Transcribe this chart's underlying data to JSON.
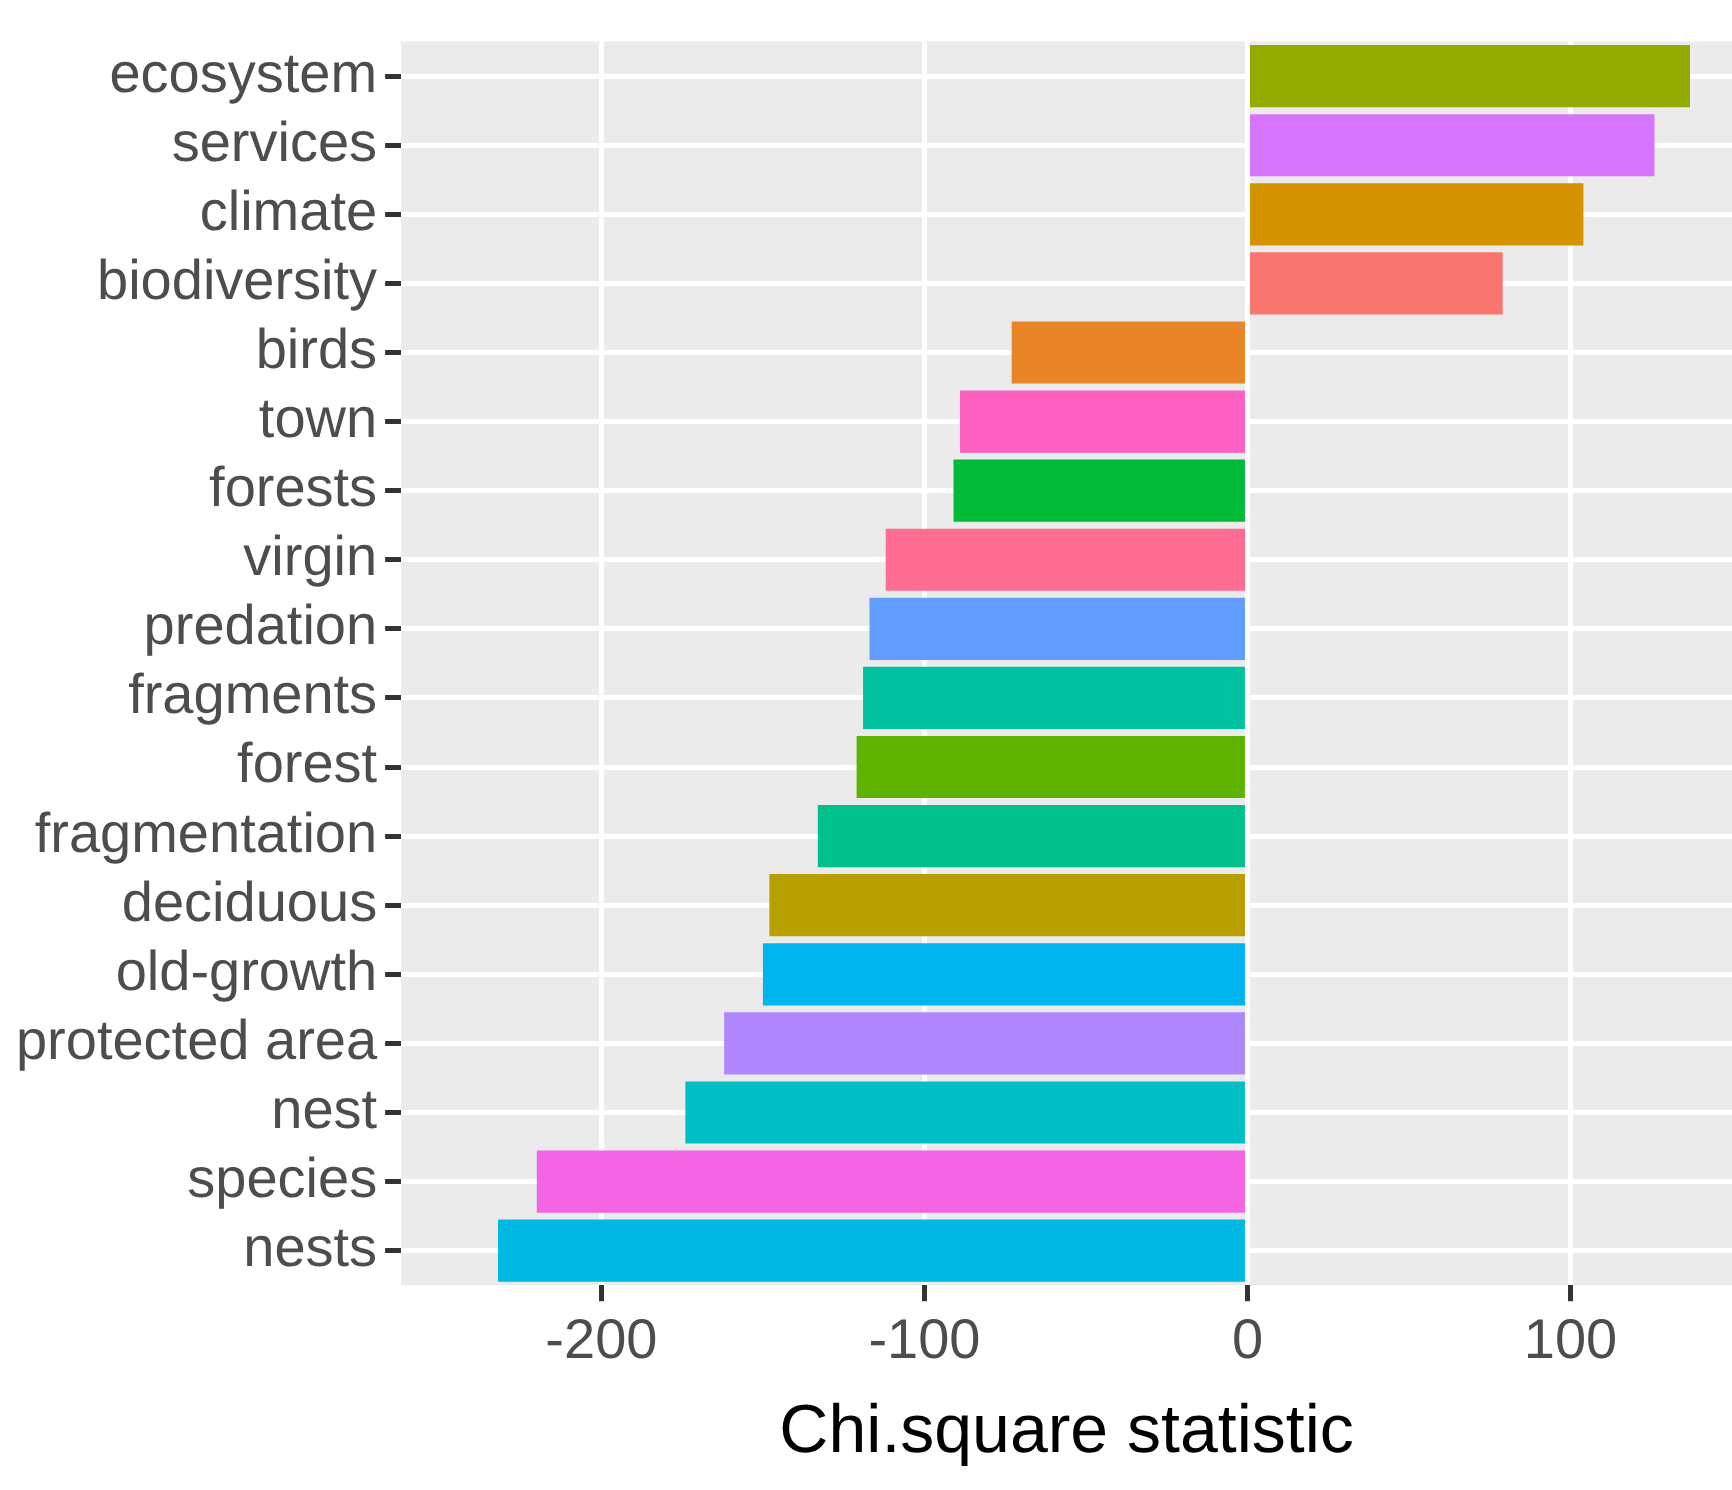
{
  "chart_data": {
    "type": "bar",
    "orientation": "horizontal",
    "xlabel": "Chi.square statistic",
    "categories": [
      "ecosystem",
      "services",
      "climate",
      "biodiversity",
      "birds",
      "town",
      "forests",
      "virgin",
      "predation",
      "fragments",
      "forest",
      "fragmentation",
      "deciduous",
      "old-growth",
      "protected area",
      "nest",
      "species",
      "nests"
    ],
    "values": [
      137,
      126,
      104,
      79,
      -73,
      -89,
      -91,
      -112,
      -117,
      -119,
      -121,
      -133,
      -148,
      -150,
      -162,
      -174,
      -220,
      -232
    ],
    "colors": [
      "#93aa00",
      "#d575fe",
      "#d39200",
      "#f8766d",
      "#e88526",
      "#ff61c3",
      "#00ba38",
      "#ff6c91",
      "#619cff",
      "#00c19f",
      "#5eb300",
      "#00c08b",
      "#b79f00",
      "#00b4f0",
      "#ae87ff",
      "#00bfc4",
      "#f564e3",
      "#00b9e3"
    ],
    "xlim": [
      -262,
      150
    ],
    "xticks": [
      -200,
      -100,
      0,
      100
    ],
    "grid": true,
    "legend": false
  }
}
